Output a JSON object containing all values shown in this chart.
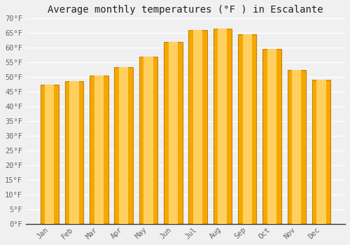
{
  "title": "Average monthly temperatures (°F ) in Escalante",
  "months": [
    "Jan",
    "Feb",
    "Mar",
    "Apr",
    "May",
    "Jun",
    "Jul",
    "Aug",
    "Sep",
    "Oct",
    "Nov",
    "Dec"
  ],
  "values": [
    47.5,
    48.5,
    50.5,
    53.5,
    57.0,
    62.0,
    66.0,
    66.5,
    64.5,
    59.5,
    52.5,
    49.0
  ],
  "bar_color_center": "#FFD060",
  "bar_color_edge": "#F5A800",
  "ylim": [
    0,
    70
  ],
  "ytick_step": 5,
  "background_color": "#f0f0f0",
  "grid_color": "#ffffff",
  "title_fontsize": 10,
  "tick_fontsize": 7.5,
  "bar_width": 0.75
}
